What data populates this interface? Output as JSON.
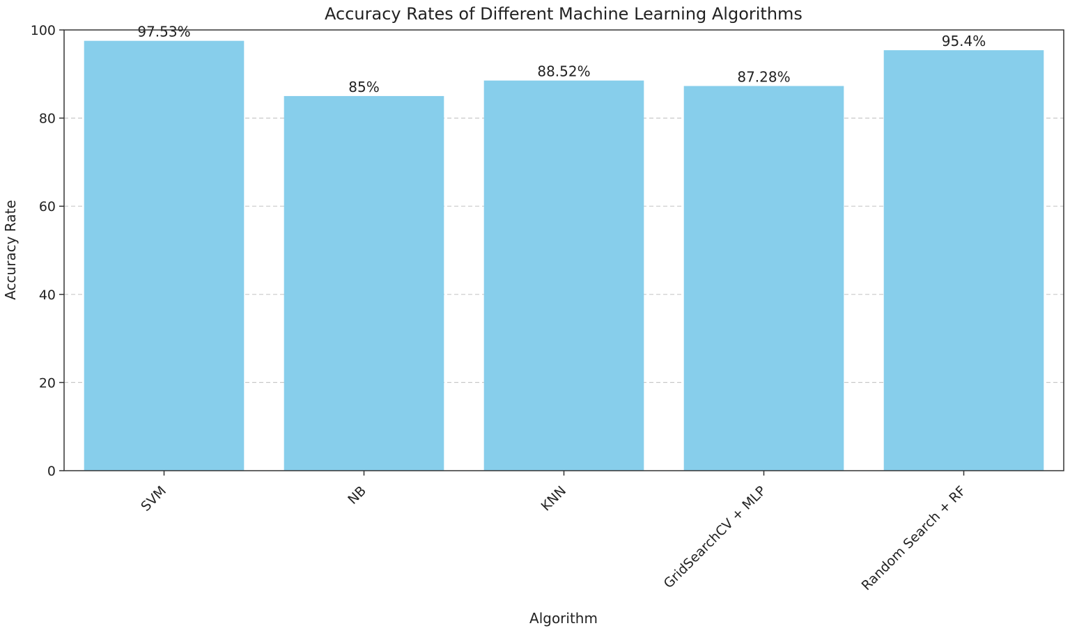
{
  "chart_data": {
    "type": "bar",
    "title": "Accuracy Rates of Different Machine Learning Algorithms",
    "xlabel": "Algorithm",
    "ylabel": "Accuracy Rate",
    "categories": [
      "SVM",
      "NB",
      "KNN",
      "GridSearchCV + MLP",
      "Random Search + RF"
    ],
    "values": [
      97.53,
      85,
      88.52,
      87.28,
      95.4
    ],
    "value_labels": [
      "97.53%",
      "85%",
      "88.52%",
      "87.28%",
      "95.4%"
    ],
    "ylim": [
      0,
      100
    ],
    "yticks": [
      0,
      20,
      40,
      60,
      80,
      100
    ],
    "ytick_labels": [
      "0",
      "20",
      "40",
      "60",
      "80",
      "100"
    ],
    "grid": "y-dashed",
    "bar_color": "#87CEEB",
    "grid_color": "#c8c8c8",
    "axis_color": "#333333"
  }
}
